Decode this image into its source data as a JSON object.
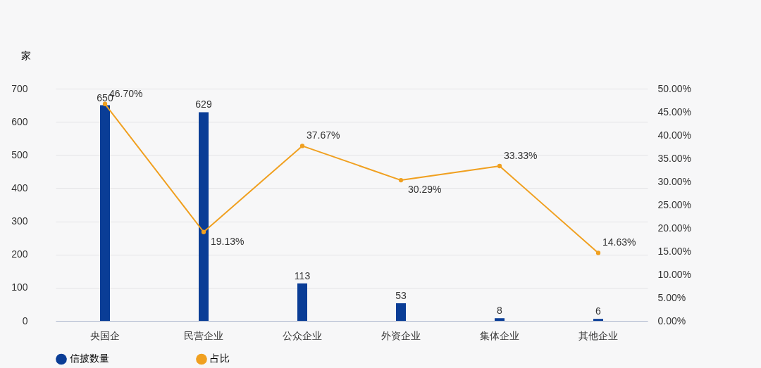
{
  "chart_data": {
    "type": "bar",
    "ylabel": "家",
    "categories": [
      "央国企",
      "民营企业",
      "公众企业",
      "外资企业",
      "集体企业",
      "其他企业"
    ],
    "series": [
      {
        "name": "信披数量",
        "color": "#0a3d96",
        "values": [
          650,
          629,
          113,
          53,
          8,
          6
        ]
      },
      {
        "name": "占比",
        "type": "line",
        "axis": "y2",
        "color": "#f0a020",
        "values": [
          46.7,
          19.13,
          37.67,
          30.29,
          33.33,
          14.63
        ],
        "value_labels": [
          "46.70%",
          "19.13%",
          "37.67%",
          "30.29%",
          "33.33%",
          "14.63%"
        ]
      }
    ],
    "data_labels": true,
    "ylim": [
      0,
      700
    ],
    "yticks": [
      0,
      100,
      200,
      300,
      400,
      500,
      600,
      700
    ],
    "y2lim": [
      0,
      50
    ],
    "y2ticks": [
      {
        "value": 0,
        "label": "0.00%"
      },
      {
        "value": 5,
        "label": "5.00%"
      },
      {
        "value": 10,
        "label": "10.00%"
      },
      {
        "value": 15,
        "label": "15.00%"
      },
      {
        "value": 20,
        "label": "20.00%"
      },
      {
        "value": 25,
        "label": "25.00%"
      },
      {
        "value": 30,
        "label": "30.00%"
      },
      {
        "value": 35,
        "label": "35.00%"
      },
      {
        "value": 40,
        "label": "40.00%"
      },
      {
        "value": 45,
        "label": "45.00%"
      },
      {
        "value": 50,
        "label": "50.00%"
      }
    ],
    "grid": "y",
    "legend": "bottom",
    "marker": "circle"
  }
}
